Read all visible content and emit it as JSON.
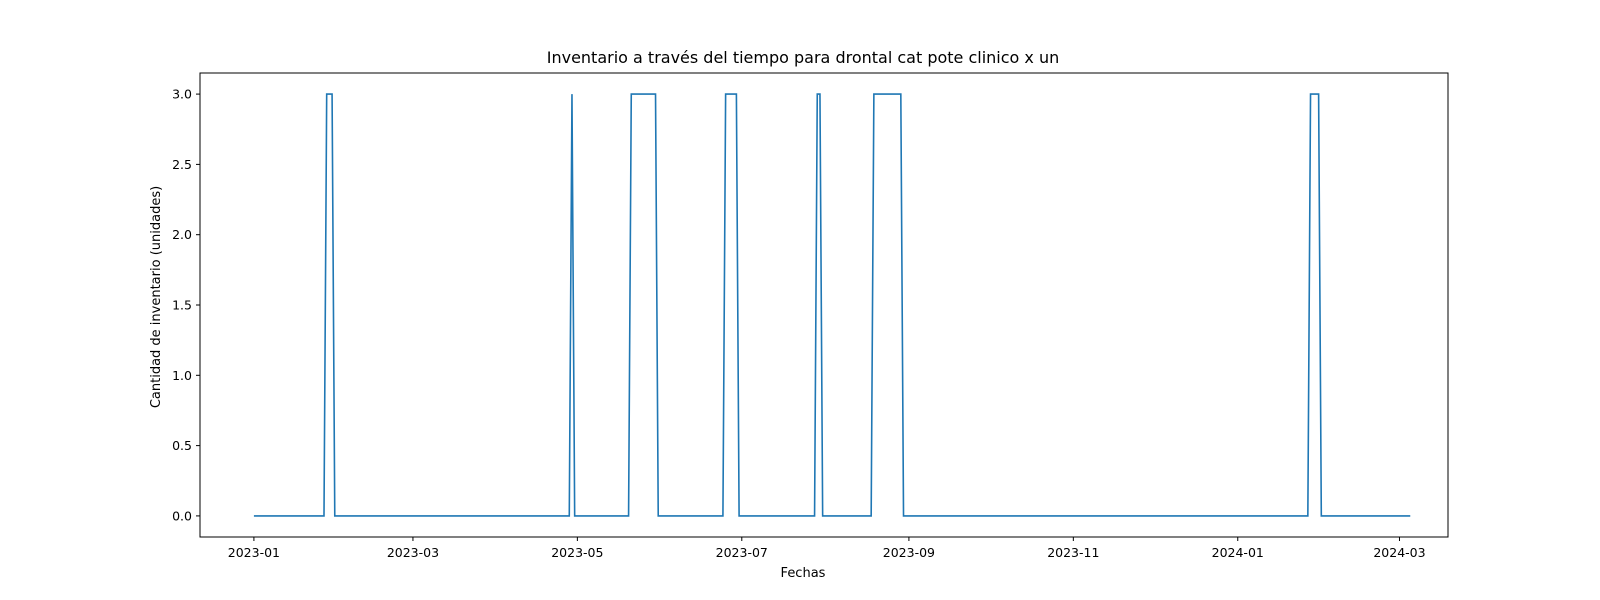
{
  "chart_data": {
    "type": "line",
    "title": "Inventario a través del tiempo para drontal cat pote clinico x un",
    "xlabel": "Fechas",
    "ylabel": "Cantidad de inventario (unidades)",
    "x_tick_labels": [
      "2023-01",
      "2023-03",
      "2023-05",
      "2023-07",
      "2023-09",
      "2023-11",
      "2024-01",
      "2024-03"
    ],
    "y_tick_labels": [
      "0.0",
      "0.5",
      "1.0",
      "1.5",
      "2.0",
      "2.5",
      "3.0"
    ],
    "xlim": [
      "2022-12-12",
      "2024-03-19"
    ],
    "ylim": [
      -0.15,
      3.15
    ],
    "grid": false,
    "legend": "none",
    "color": "#1f77b4",
    "series": [
      {
        "x": [
          "2023-01-01",
          "2023-01-27",
          "2023-01-28",
          "2023-01-30",
          "2023-01-31",
          "2023-04-28",
          "2023-04-29",
          "2023-04-30",
          "2023-05-20",
          "2023-05-21",
          "2023-05-30",
          "2023-05-31",
          "2023-06-24",
          "2023-06-25",
          "2023-06-29",
          "2023-06-30",
          "2023-07-28",
          "2023-07-29",
          "2023-07-30",
          "2023-07-31",
          "2023-08-18",
          "2023-08-19",
          "2023-08-29",
          "2023-08-30",
          "2024-01-27",
          "2024-01-28",
          "2024-01-31",
          "2024-02-01",
          "2024-03-05"
        ],
        "y": [
          0,
          0,
          3,
          3,
          0,
          0,
          3,
          0,
          0,
          3,
          3,
          0,
          0,
          3,
          3,
          0,
          0,
          3,
          3,
          0,
          0,
          3,
          3,
          0,
          0,
          3,
          3,
          0,
          0
        ]
      }
    ]
  }
}
